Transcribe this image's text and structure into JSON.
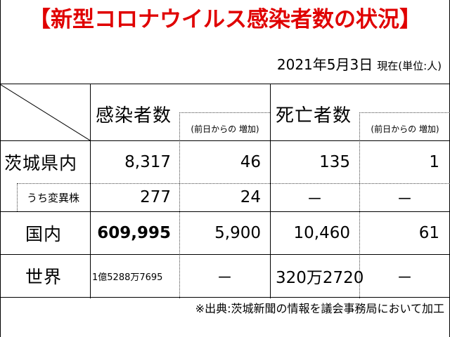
{
  "title": "【新型コロナウイルス感染者数の状況】",
  "date": "2021年5月3日",
  "unit": "現在(単位:人)",
  "headers": {
    "infected": "感染者数",
    "infected_increase": "(前日からの 増加)",
    "deaths": "死亡者数",
    "deaths_increase": "(前日からの 増加)"
  },
  "rows": [
    {
      "label": "茨城県内",
      "infected": "8,317",
      "infected_increase": "46",
      "deaths": "135",
      "deaths_increase": "1"
    },
    {
      "label": "うち変異株",
      "infected": "277",
      "infected_increase": "24",
      "deaths": "－",
      "deaths_increase": "－"
    },
    {
      "label": "国内",
      "infected": "609,995",
      "infected_increase": "5,900",
      "deaths": "10,460",
      "deaths_increase": "61"
    },
    {
      "label": "世界",
      "infected": "1億5288万7695",
      "infected_increase": "－",
      "deaths": "320万2720",
      "deaths_increase": "－"
    }
  ],
  "source": "※出典:茨城新聞の情報を議会事務局において加工"
}
